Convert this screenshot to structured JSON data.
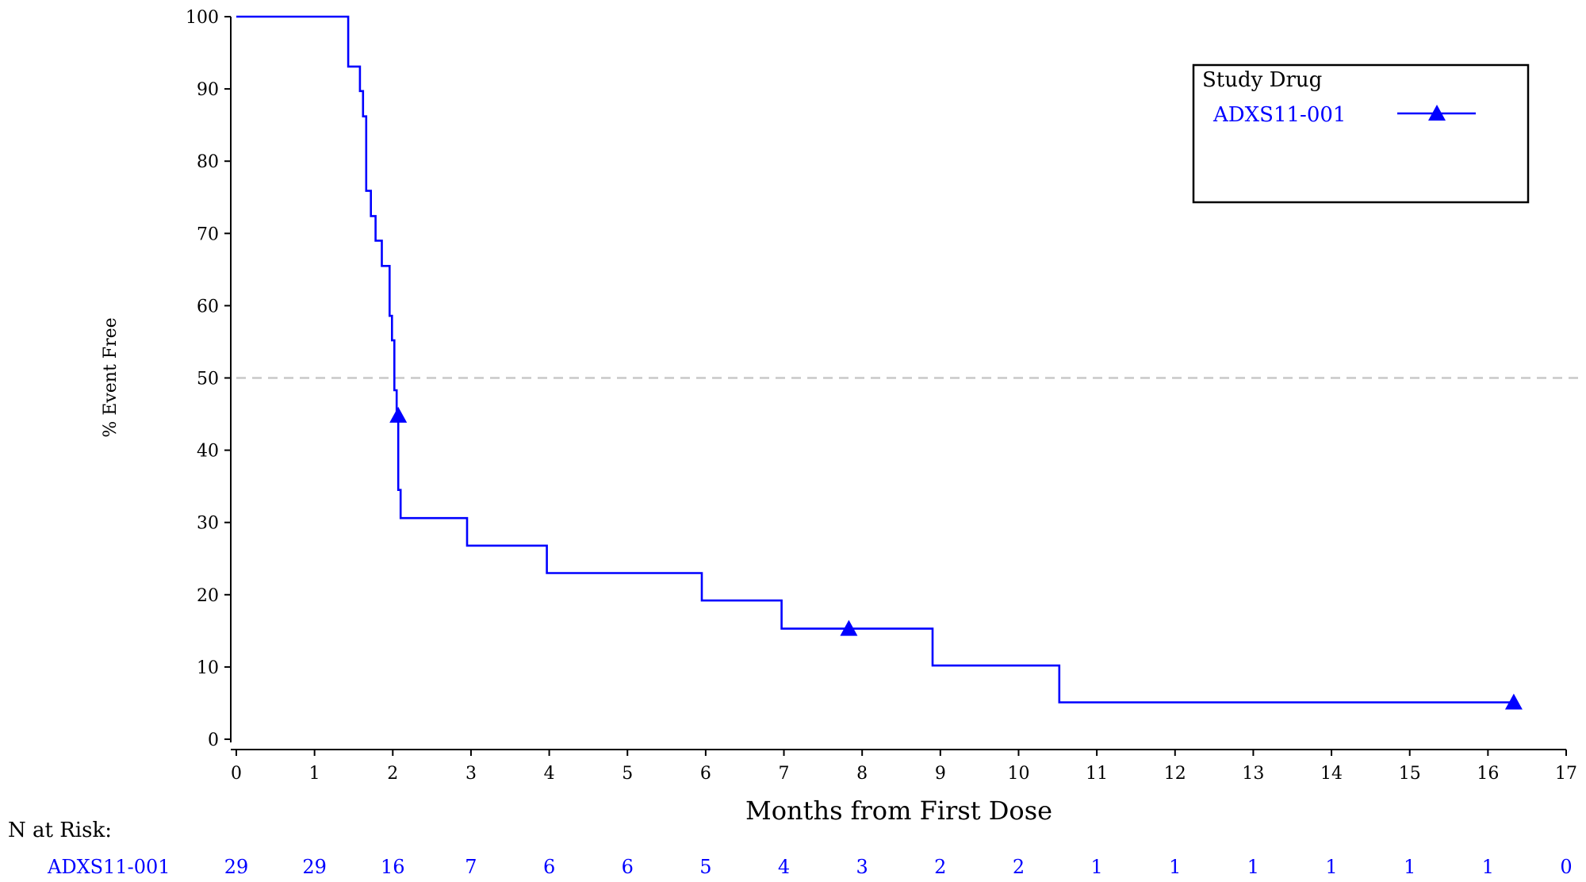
{
  "chart_data": {
    "type": "line",
    "subtype": "kaplan-meier",
    "title": "",
    "xlabel": "Months from First Dose",
    "ylabel": "% Event Free",
    "xlim": [
      0,
      17
    ],
    "ylim": [
      0,
      100
    ],
    "x_ticks": [
      0,
      1,
      2,
      3,
      4,
      5,
      6,
      7,
      8,
      9,
      10,
      11,
      12,
      13,
      14,
      15,
      16,
      17
    ],
    "y_ticks": [
      0,
      10,
      20,
      30,
      40,
      50,
      60,
      70,
      80,
      90,
      100
    ],
    "grid": false,
    "reference_line": {
      "y": 50,
      "style": "dashed",
      "color": "#c8c8c8"
    },
    "legend": {
      "title": "Study Drug",
      "position": "top-right",
      "entries": [
        {
          "label": "ADXS11-001",
          "marker": "triangle"
        }
      ]
    },
    "series": [
      {
        "name": "ADXS11-001",
        "color": "#0000ff",
        "step": true,
        "points": [
          [
            0,
            100
          ],
          [
            1.43,
            100
          ],
          [
            1.43,
            93.1
          ],
          [
            1.58,
            93.1
          ],
          [
            1.58,
            89.7
          ],
          [
            1.62,
            89.7
          ],
          [
            1.62,
            86.2
          ],
          [
            1.66,
            86.2
          ],
          [
            1.66,
            75.9
          ],
          [
            1.72,
            75.9
          ],
          [
            1.72,
            72.4
          ],
          [
            1.78,
            72.4
          ],
          [
            1.78,
            69.0
          ],
          [
            1.86,
            69.0
          ],
          [
            1.86,
            65.5
          ],
          [
            1.96,
            65.5
          ],
          [
            1.96,
            58.6
          ],
          [
            1.99,
            58.6
          ],
          [
            1.99,
            55.2
          ],
          [
            2.02,
            55.2
          ],
          [
            2.02,
            48.3
          ],
          [
            2.05,
            48.3
          ],
          [
            2.05,
            44.8
          ],
          [
            2.07,
            44.8
          ],
          [
            2.07,
            34.5
          ],
          [
            2.1,
            34.5
          ],
          [
            2.1,
            30.6
          ],
          [
            2.95,
            30.6
          ],
          [
            2.95,
            26.8
          ],
          [
            3.97,
            26.8
          ],
          [
            3.97,
            23.0
          ],
          [
            5.95,
            23.0
          ],
          [
            5.95,
            19.2
          ],
          [
            6.97,
            19.2
          ],
          [
            6.97,
            15.3
          ],
          [
            8.9,
            15.3
          ],
          [
            8.9,
            10.2
          ],
          [
            10.52,
            10.2
          ],
          [
            10.52,
            5.1
          ],
          [
            16.33,
            5.1
          ]
        ],
        "censored": [
          [
            2.07,
            44.8
          ],
          [
            7.83,
            15.3
          ],
          [
            16.33,
            5.1
          ]
        ]
      }
    ],
    "risk_table": {
      "header": "N at Risk:",
      "rows": [
        {
          "label": "ADXS11-001",
          "times": [
            0,
            1,
            2,
            3,
            4,
            5,
            6,
            7,
            8,
            9,
            10,
            11,
            12,
            13,
            14,
            15,
            16,
            17
          ],
          "values": [
            29,
            29,
            16,
            7,
            6,
            6,
            5,
            4,
            3,
            2,
            2,
            1,
            1,
            1,
            1,
            1,
            1,
            0
          ]
        }
      ]
    }
  }
}
